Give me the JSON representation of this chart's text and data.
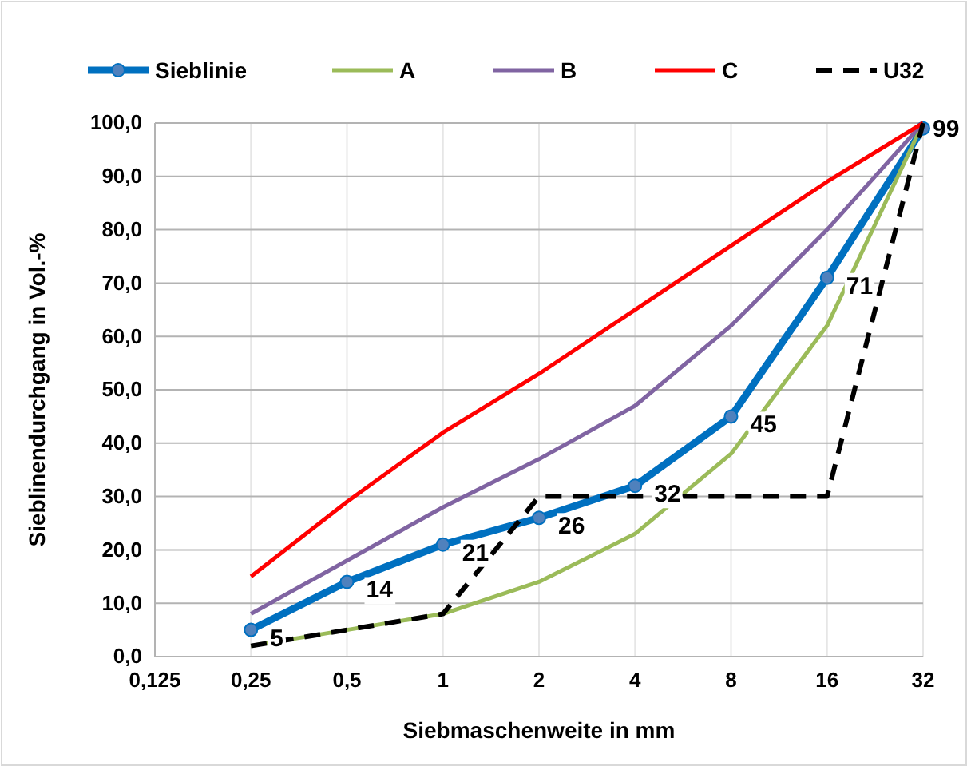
{
  "chart_data": {
    "type": "line",
    "xlabel": "Siebmaschenweite in mm",
    "ylabel": "Sieblinendurchgang in Vol.-%",
    "categories": [
      "0,125",
      "0,25",
      "0,5",
      "1",
      "2",
      "4",
      "8",
      "16",
      "32"
    ],
    "ylim": [
      0,
      100
    ],
    "yticks": [
      {
        "value": 0,
        "label": "0,0"
      },
      {
        "value": 10,
        "label": "10,0"
      },
      {
        "value": 20,
        "label": "20,0"
      },
      {
        "value": 30,
        "label": "30,0"
      },
      {
        "value": 40,
        "label": "40,0"
      },
      {
        "value": 50,
        "label": "50,0"
      },
      {
        "value": 60,
        "label": "60,0"
      },
      {
        "value": 70,
        "label": "70,0"
      },
      {
        "value": 80,
        "label": "80,0"
      },
      {
        "value": 90,
        "label": "90,0"
      },
      {
        "value": 100,
        "label": "100,0"
      }
    ],
    "grid": true,
    "legend": "top",
    "series": [
      {
        "name": "Sieblinie",
        "color": "#0070c0",
        "marker": "circle",
        "values": [
          null,
          5,
          14,
          21,
          26,
          32,
          45,
          71,
          99
        ],
        "value_labels": [
          null,
          "5",
          "14",
          "21",
          "26",
          "32",
          "45",
          "71",
          "99"
        ]
      },
      {
        "name": "A",
        "color": "#9bbb59",
        "values": [
          null,
          2,
          5,
          8,
          14,
          23,
          38,
          62,
          100
        ]
      },
      {
        "name": "B",
        "color": "#8064a2",
        "values": [
          null,
          8,
          18,
          28,
          37,
          47,
          62,
          80,
          100
        ]
      },
      {
        "name": "C",
        "color": "#ff0000",
        "values": [
          null,
          15,
          29,
          42,
          53,
          65,
          77,
          89,
          100
        ]
      },
      {
        "name": "U32",
        "color": "#000000",
        "line_style": "dashed",
        "values": [
          null,
          2,
          5,
          8,
          30,
          30,
          30,
          30,
          100
        ]
      }
    ]
  }
}
